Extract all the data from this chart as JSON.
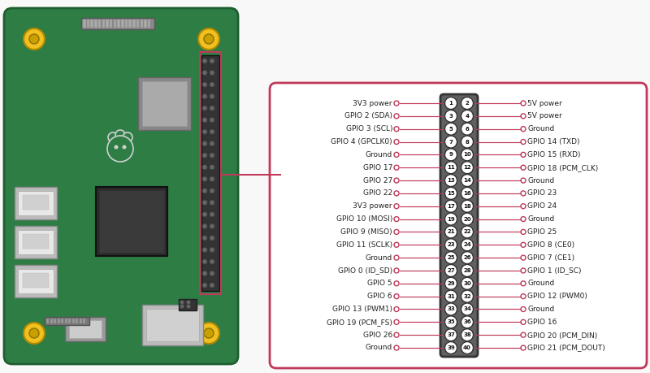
{
  "bg_color": "#f8f8f8",
  "border_color": "#c0395a",
  "connector_bg": "#606060",
  "connector_border": "#333333",
  "pin_circle_bg": "#ffffff",
  "pin_circle_border": "#333333",
  "line_color": "#c0395a",
  "text_color": "#222222",
  "font_size": 6.5,
  "board_color": "#2e7d45",
  "board_edge": "#1e5e30",
  "chip_dark": "#2a2a2a",
  "chip_mid": "#3a3a3a",
  "usb_color": "#cccccc",
  "yellow": "#f0c020",
  "pins": [
    {
      "left": "3V3 power",
      "right": "5V power"
    },
    {
      "left": "GPIO 2 (SDA)",
      "right": "5V power"
    },
    {
      "left": "GPIO 3 (SCL)",
      "right": "Ground"
    },
    {
      "left": "GPIO 4 (GPCLK0)",
      "right": "GPIO 14 (TXD)"
    },
    {
      "left": "Ground",
      "right": "GPIO 15 (RXD)"
    },
    {
      "left": "GPIO 17",
      "right": "GPIO 18 (PCM_CLK)"
    },
    {
      "left": "GPIO 27",
      "right": "Ground"
    },
    {
      "left": "GPIO 22",
      "right": "GPIO 23"
    },
    {
      "left": "3V3 power",
      "right": "GPIO 24"
    },
    {
      "left": "GPIO 10 (MOSI)",
      "right": "Ground"
    },
    {
      "left": "GPIO 9 (MISO)",
      "right": "GPIO 25"
    },
    {
      "left": "GPIO 11 (SCLK)",
      "right": "GPIO 8 (CE0)"
    },
    {
      "left": "Ground",
      "right": "GPIO 7 (CE1)"
    },
    {
      "left": "GPIO 0 (ID_SD)",
      "right": "GPIO 1 (ID_SC)"
    },
    {
      "left": "GPIO 5",
      "right": "Ground"
    },
    {
      "left": "GPIO 6",
      "right": "GPIO 12 (PWM0)"
    },
    {
      "left": "GPIO 13 (PWM1)",
      "right": "Ground"
    },
    {
      "left": "GPIO 19 (PCM_FS)",
      "right": "GPIO 16"
    },
    {
      "left": "GPIO 26",
      "right": "GPIO 20 (PCM_DIN)"
    },
    {
      "left": "Ground",
      "right": "GPIO 21 (PCM_DOUT)"
    }
  ]
}
